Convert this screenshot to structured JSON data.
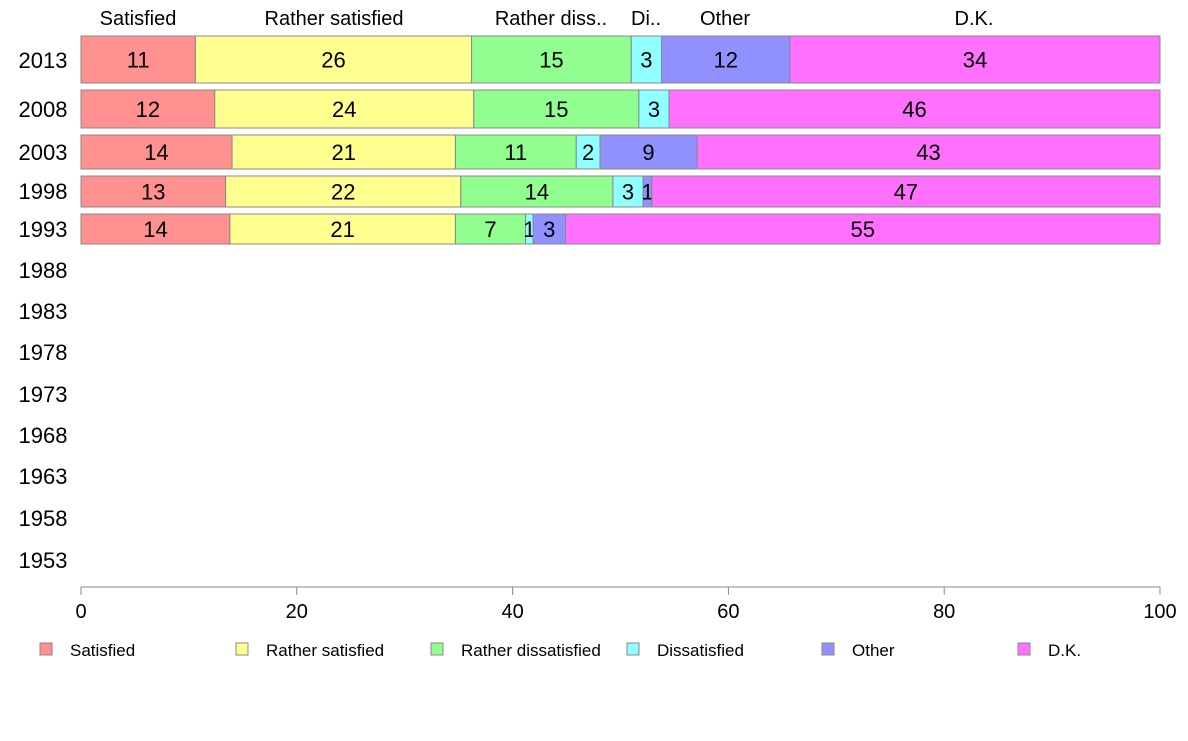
{
  "chart_data": {
    "type": "bar",
    "orientation": "horizontal",
    "stacked": true,
    "categories": [
      "2013",
      "2008",
      "2003",
      "1998",
      "1993",
      "1988",
      "1983",
      "1978",
      "1973",
      "1968",
      "1963",
      "1958",
      "1953"
    ],
    "column_headers": [
      "Satisfied",
      "Rather satisfied",
      "Rather diss..",
      "Di..",
      "Other",
      "D.K."
    ],
    "series": [
      {
        "name": "Satisfied",
        "color": "#ff9090",
        "values": [
          11,
          12,
          14,
          13,
          14,
          null,
          null,
          null,
          null,
          null,
          null,
          null,
          null
        ],
        "widths": [
          10.6,
          12.4,
          14.0,
          13.4,
          13.8,
          null,
          null,
          null,
          null,
          null,
          null,
          null,
          null
        ]
      },
      {
        "name": "Rather satisfied",
        "color": "#ffff90",
        "values": [
          26,
          24,
          21,
          22,
          21,
          null,
          null,
          null,
          null,
          null,
          null,
          null,
          null
        ],
        "widths": [
          25.6,
          24.0,
          20.7,
          21.8,
          20.9,
          null,
          null,
          null,
          null,
          null,
          null,
          null,
          null
        ]
      },
      {
        "name": "Rather dissatisfied",
        "color": "#90ff90",
        "values": [
          15,
          15,
          11,
          14,
          7,
          null,
          null,
          null,
          null,
          null,
          null,
          null,
          null
        ],
        "widths": [
          14.8,
          15.3,
          11.2,
          14.1,
          6.5,
          null,
          null,
          null,
          null,
          null,
          null,
          null,
          null
        ]
      },
      {
        "name": "Dissatisfied",
        "color": "#90ffff",
        "values": [
          3,
          3,
          2,
          3,
          1,
          null,
          null,
          null,
          null,
          null,
          null,
          null,
          null
        ],
        "widths": [
          2.8,
          2.8,
          2.2,
          2.8,
          0.7,
          null,
          null,
          null,
          null,
          null,
          null,
          null,
          null
        ]
      },
      {
        "name": "Other",
        "color": "#9090ff",
        "values": [
          12,
          null,
          9,
          1,
          3,
          null,
          null,
          null,
          null,
          null,
          null,
          null,
          null
        ],
        "widths": [
          11.9,
          null,
          9.0,
          0.8,
          3.0,
          null,
          null,
          null,
          null,
          null,
          null,
          null,
          null
        ]
      },
      {
        "name": "D.K.",
        "color": "#ff70ff",
        "values": [
          34,
          46,
          43,
          47,
          55,
          null,
          null,
          null,
          null,
          null,
          null,
          null,
          null
        ],
        "widths": [
          34.3,
          45.5,
          42.9,
          47.1,
          55.1,
          null,
          null,
          null,
          null,
          null,
          null,
          null,
          null
        ]
      }
    ],
    "xlim": [
      0,
      100
    ],
    "xticks": [
      "0",
      "20",
      "40",
      "60",
      "80",
      "100"
    ],
    "grid": false,
    "legend_position": "bottom",
    "title": "",
    "xlabel": "",
    "ylabel": ""
  }
}
